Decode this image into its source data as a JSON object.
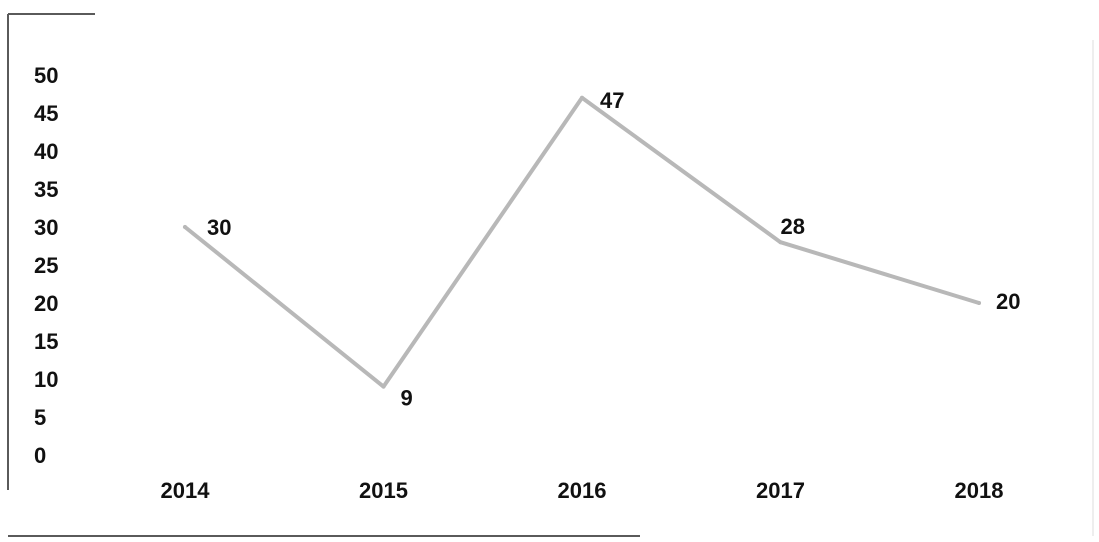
{
  "chart_data": {
    "type": "line",
    "categories": [
      "2014",
      "2015",
      "2016",
      "2017",
      "2018"
    ],
    "series": [
      {
        "values": [
          30,
          9,
          47,
          28,
          20
        ]
      }
    ],
    "data_labels": [
      "30",
      "9",
      "47",
      "28",
      "20"
    ],
    "y_ticks": [
      "0",
      "5",
      "10",
      "15",
      "20",
      "25",
      "30",
      "35",
      "40",
      "45",
      "50"
    ],
    "ylim": [
      0,
      50
    ],
    "grid": false,
    "legend": "none",
    "line_color": "#b8b8b8"
  }
}
